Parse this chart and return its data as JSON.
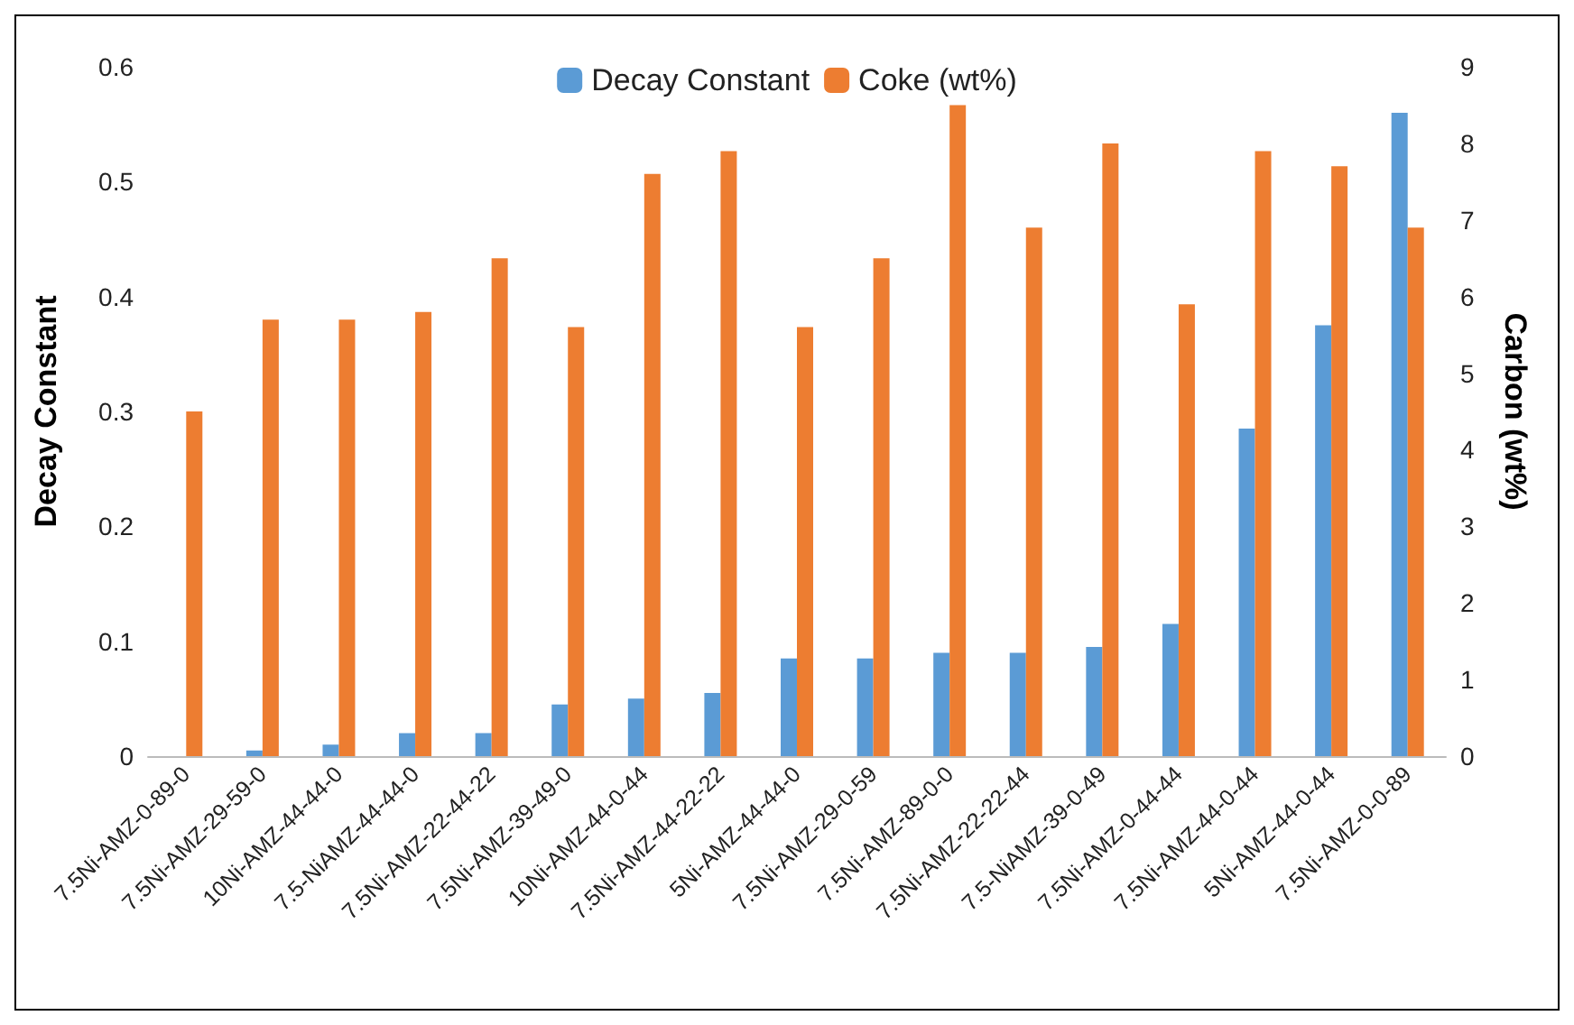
{
  "chart_data": {
    "type": "bar",
    "ylabel": "Decay Constant",
    "y2label": "Carbon (wt%)",
    "categories": [
      "7.5Ni-AMZ-0-89-0",
      "7.5Ni-AMZ-29-59-0",
      "10Ni-AMZ-44-44-0",
      "7.5-NiAMZ-44-44-0",
      "7.5Ni-AMZ-22-44-22",
      "7.5Ni-AMZ-39-49-0",
      "10Ni-AMZ-44-0-44",
      "7.5Ni-AMZ-44-22-22",
      "5Ni-AMZ-44-44-0",
      "7.5Ni-AMZ-29-0-59",
      "7.5Ni-AMZ-89-0-0",
      "7.5Ni-AMZ-22-22-44",
      "7.5-NiAMZ-39-0-49",
      "7.5Ni-AMZ-0-44-44",
      "7.5Ni-AMZ-44-0-44",
      "5Ni-AMZ-44-0-44",
      "7.5Ni-AMZ-0-0-89"
    ],
    "series": [
      {
        "name": "Decay Constant",
        "color": "#5b9bd5",
        "values": [
          0,
          0.005,
          0.01,
          0.02,
          0.02,
          0.045,
          0.05,
          0.055,
          0.085,
          0.085,
          0.09,
          0.09,
          0.095,
          0.115,
          0.285,
          0.375,
          0.56
        ]
      },
      {
        "name": "Coke (wt%)",
        "color": "#ed7d31",
        "axis": "y2",
        "values": [
          4.5,
          5.7,
          5.7,
          5.8,
          6.5,
          5.6,
          7.6,
          7.9,
          5.6,
          6.5,
          8.5,
          6.9,
          8.0,
          5.9,
          7.9,
          7.7,
          6.9
        ]
      }
    ],
    "ylim": [
      0,
      0.6
    ],
    "yticks": [
      0,
      0.1,
      0.2,
      0.3,
      0.4,
      0.5,
      0.6
    ],
    "y2lim": [
      0,
      9
    ],
    "y2ticks": [
      0,
      1,
      2,
      3,
      4,
      5,
      6,
      7,
      8,
      9
    ],
    "grid": false,
    "legend": "top"
  }
}
